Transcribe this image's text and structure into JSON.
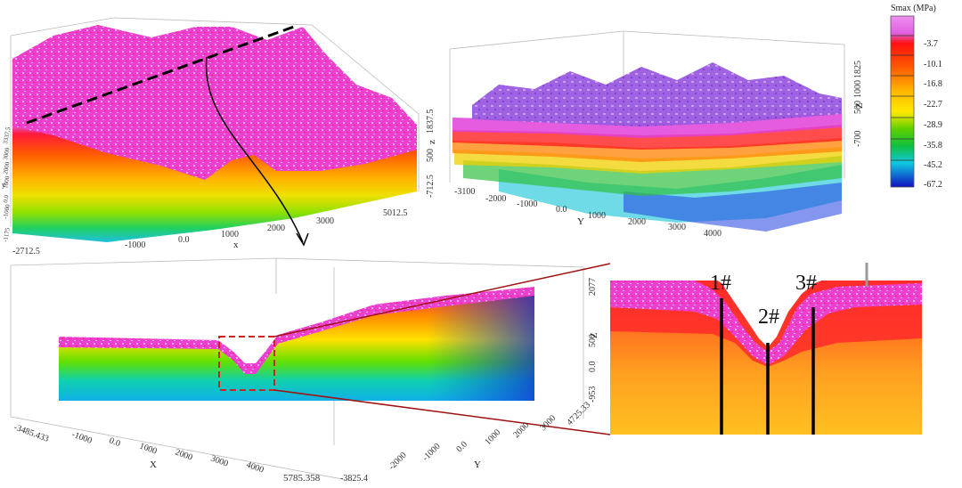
{
  "legend": {
    "title": "Smax (MPa)",
    "values": [
      "-3.7",
      "-10.1",
      "-16.8",
      "-22.7",
      "-28.9",
      "-35.8",
      "-45.2",
      "-67.2"
    ],
    "colors": [
      "#e070e8",
      "#ff1a1a",
      "#ff7a00",
      "#ffcc00",
      "#9adf00",
      "#15c21b",
      "#10c8d8",
      "#1a1acc"
    ]
  },
  "panel_tl": {
    "x_ticks": [
      "-2712.5",
      "-1000",
      "0.0",
      "1000",
      "2000",
      "3000",
      "5012.5"
    ],
    "x_label": "x",
    "z_ticks": [
      "1837.5",
      "500",
      "-712.5"
    ],
    "z_label": "z",
    "left_ticks": [
      "3337.5",
      "3000",
      "2000",
      "1000",
      "0.0",
      "-1000",
      "-1175"
    ],
    "left_label": "y"
  },
  "panel_tr": {
    "y_ticks": [
      "-3100",
      "-2000",
      "-1000",
      "0.0",
      "1000",
      "2000",
      "3000",
      "4000"
    ],
    "y_label": "Y",
    "z_ticks": [
      "1825",
      "1000",
      "500",
      "-700"
    ],
    "z_label": "Z"
  },
  "panel_b": {
    "x_ticks": [
      "-3485.433",
      "-1000",
      "0.0",
      "1000",
      "2000",
      "3000",
      "4000",
      "5785.358"
    ],
    "x_label": "X",
    "y_ticks": [
      "-3825.4",
      "-2000",
      "-1000",
      "0.0",
      "1000",
      "2000",
      "3000",
      "4725.33"
    ],
    "y_label": "Y",
    "z_ticks": [
      "2077",
      "500",
      "0.0",
      "-953"
    ],
    "z_label": "Z"
  },
  "zoom": {
    "boreholes": [
      "1#",
      "2#",
      "3#"
    ]
  }
}
